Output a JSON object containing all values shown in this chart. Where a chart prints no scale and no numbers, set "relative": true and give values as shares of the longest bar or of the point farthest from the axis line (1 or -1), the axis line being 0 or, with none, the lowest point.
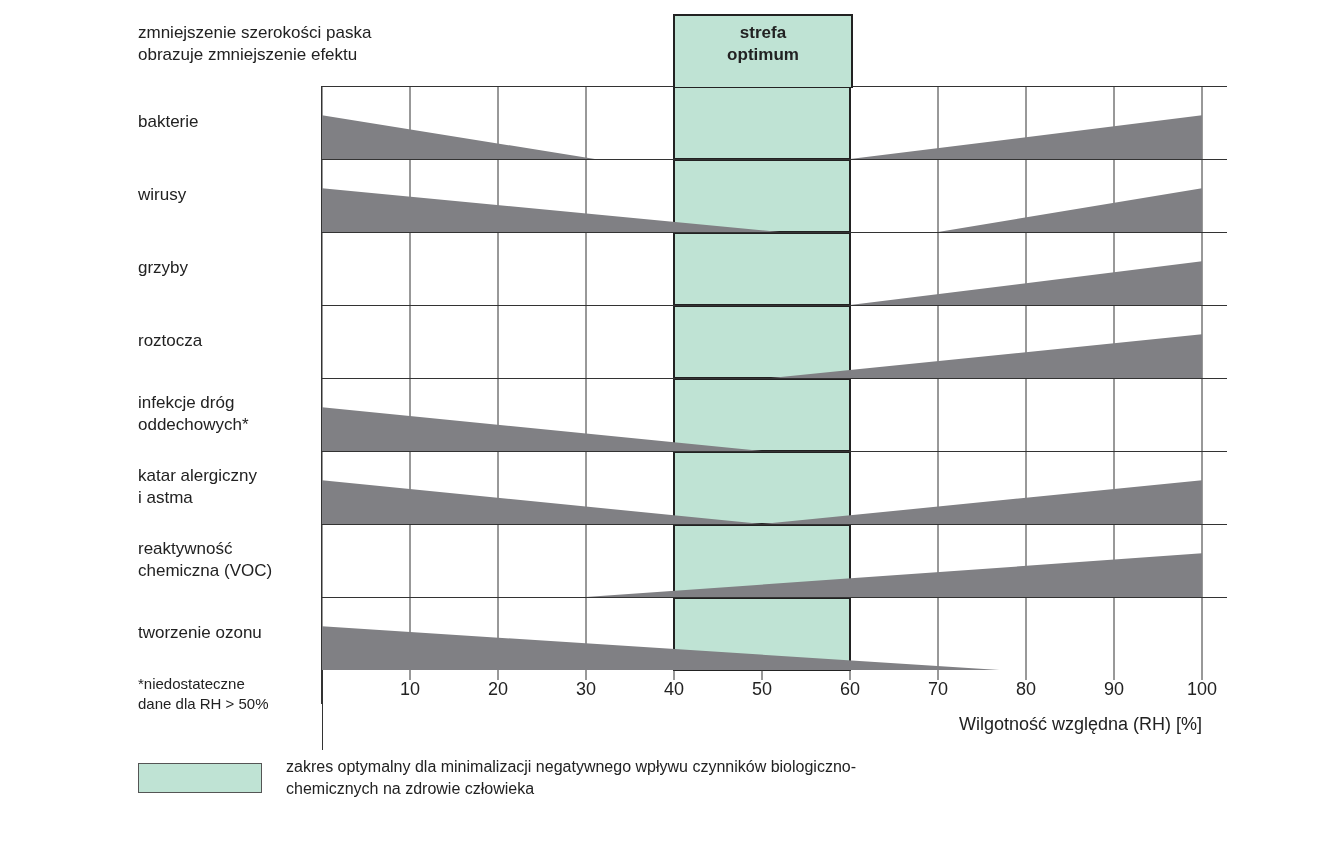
{
  "chart_data": [
    {
      "type": "area",
      "ylabel": "bakterie",
      "x": [
        0,
        31,
        60,
        100
      ],
      "values": [
        1,
        0,
        0,
        1
      ],
      "color": "#808084",
      "relative": true,
      "xlim": [
        0,
        100
      ],
      "xticks": [
        10,
        20,
        30,
        40,
        50,
        60,
        70,
        80,
        90,
        100
      ],
      "grid": "x",
      "tick_labels": false,
      "bands": [
        {
          "axis": "x",
          "from": 40,
          "to": 60,
          "label": "strefa optimum",
          "color": "#bfe3d4"
        }
      ],
      "annotations": [
        "zmniejszenie szerokości paska obrazuje zmniejszenie efektu"
      ]
    },
    {
      "type": "area",
      "ylabel": "wirusy",
      "x": [
        0,
        52,
        70,
        100
      ],
      "values": [
        1,
        0,
        0,
        1
      ],
      "color": "#808084",
      "relative": true,
      "xlim": [
        0,
        100
      ],
      "xticks": [
        10,
        20,
        30,
        40,
        50,
        60,
        70,
        80,
        90,
        100
      ],
      "grid": "x",
      "tick_labels": false,
      "bands": [
        {
          "axis": "x",
          "from": 40,
          "to": 60,
          "color": "#bfe3d4"
        }
      ]
    },
    {
      "type": "area",
      "ylabel": "grzyby",
      "x": [
        0,
        60,
        100
      ],
      "values": [
        0,
        0,
        1
      ],
      "color": "#808084",
      "relative": true,
      "xlim": [
        0,
        100
      ],
      "xticks": [
        10,
        20,
        30,
        40,
        50,
        60,
        70,
        80,
        90,
        100
      ],
      "grid": "x",
      "tick_labels": false,
      "bands": [
        {
          "axis": "x",
          "from": 40,
          "to": 60,
          "color": "#bfe3d4"
        }
      ]
    },
    {
      "type": "area",
      "ylabel": "roztocza",
      "x": [
        0,
        51,
        100
      ],
      "values": [
        0,
        0,
        1
      ],
      "color": "#808084",
      "relative": true,
      "xlim": [
        0,
        100
      ],
      "xticks": [
        10,
        20,
        30,
        40,
        50,
        60,
        70,
        80,
        90,
        100
      ],
      "grid": "x",
      "tick_labels": false,
      "bands": [
        {
          "axis": "x",
          "from": 40,
          "to": 60,
          "color": "#bfe3d4"
        }
      ]
    },
    {
      "type": "area",
      "ylabel": "infekcje dróg oddechowych*",
      "x": [
        0,
        50,
        100
      ],
      "values": [
        1,
        0,
        0
      ],
      "color": "#808084",
      "relative": true,
      "xlim": [
        0,
        100
      ],
      "xticks": [
        10,
        20,
        30,
        40,
        50,
        60,
        70,
        80,
        90,
        100
      ],
      "grid": "x",
      "tick_labels": false,
      "bands": [
        {
          "axis": "x",
          "from": 40,
          "to": 60,
          "color": "#bfe3d4"
        }
      ]
    },
    {
      "type": "area",
      "ylabel": "katar alergiczny i astma",
      "x": [
        0,
        50,
        100
      ],
      "values": [
        1,
        0,
        1
      ],
      "color": "#808084",
      "relative": true,
      "xlim": [
        0,
        100
      ],
      "xticks": [
        10,
        20,
        30,
        40,
        50,
        60,
        70,
        80,
        90,
        100
      ],
      "grid": "x",
      "tick_labels": false,
      "bands": [
        {
          "axis": "x",
          "from": 40,
          "to": 60,
          "color": "#bfe3d4"
        }
      ]
    },
    {
      "type": "area",
      "ylabel": "reaktywność chemiczna (VOC)",
      "x": [
        0,
        30,
        100
      ],
      "values": [
        0,
        0,
        1
      ],
      "color": "#808084",
      "relative": true,
      "xlim": [
        0,
        100
      ],
      "xticks": [
        10,
        20,
        30,
        40,
        50,
        60,
        70,
        80,
        90,
        100
      ],
      "grid": "x",
      "tick_labels": false,
      "bands": [
        {
          "axis": "x",
          "from": 40,
          "to": 60,
          "color": "#bfe3d4"
        }
      ]
    },
    {
      "type": "area",
      "ylabel": "tworzenie ozonu",
      "x": [
        0,
        77,
        100
      ],
      "values": [
        1,
        0,
        0
      ],
      "color": "#808084",
      "relative": true,
      "xlim": [
        0,
        100
      ],
      "xticks": [
        10,
        20,
        30,
        40,
        50,
        60,
        70,
        80,
        90,
        100
      ],
      "grid": "x",
      "tick_labels": "x",
      "xlabel": "Wilgotność względna (RH) [%]",
      "bands": [
        {
          "axis": "x",
          "from": 40,
          "to": 60,
          "color": "#bfe3d4"
        }
      ],
      "annotations": [
        "*niedostateczne dane dla RH > 50%",
        "zakres optymalny dla minimalizacji negatywnego wpływu czynników biologiczno-chemicznych na zdrowie człowieka"
      ]
    }
  ]
}
